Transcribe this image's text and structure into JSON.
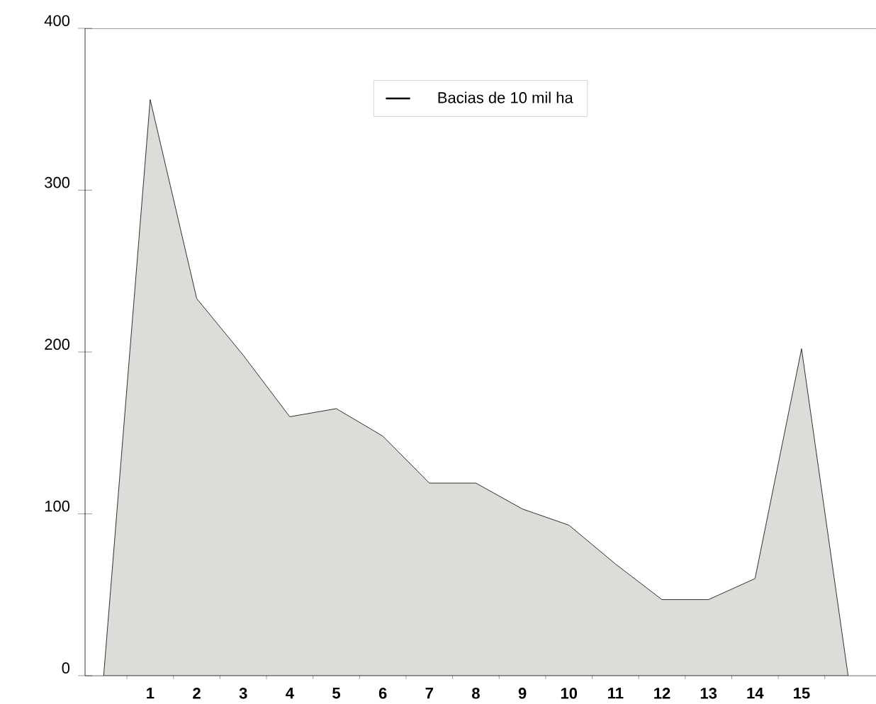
{
  "chart_data": {
    "type": "area",
    "categories": [
      null,
      "1",
      "2",
      "3",
      "4",
      "5",
      "6",
      "7",
      "8",
      "9",
      "10",
      "11",
      "12",
      "13",
      "14",
      "15",
      null
    ],
    "series": [
      {
        "name": "Bacias de 10 mil ha",
        "color": "#dcdcd9",
        "values": [
          0,
          356,
          233,
          198,
          160,
          165,
          148,
          119,
          119,
          103,
          93,
          69,
          47,
          47,
          60,
          202,
          0
        ]
      }
    ],
    "ylim": [
      0,
      400
    ],
    "yticks": [
      0,
      100,
      200,
      300,
      400
    ],
    "grid": false,
    "legend": "top"
  }
}
